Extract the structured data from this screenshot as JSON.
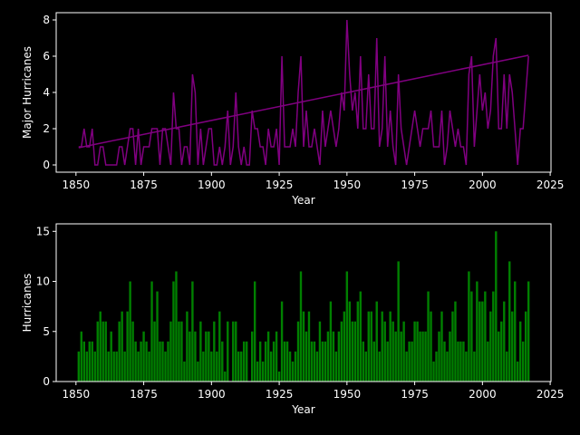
{
  "chart_data": [
    {
      "type": "line",
      "xlabel": "Year",
      "ylabel": "Major Hurricanes",
      "x": [
        1851,
        1852,
        1853,
        1854,
        1855,
        1856,
        1857,
        1858,
        1859,
        1860,
        1861,
        1862,
        1863,
        1864,
        1865,
        1866,
        1867,
        1868,
        1869,
        1870,
        1871,
        1872,
        1873,
        1874,
        1875,
        1876,
        1877,
        1878,
        1879,
        1880,
        1881,
        1882,
        1883,
        1884,
        1885,
        1886,
        1887,
        1888,
        1889,
        1890,
        1891,
        1892,
        1893,
        1894,
        1895,
        1896,
        1897,
        1898,
        1899,
        1900,
        1901,
        1902,
        1903,
        1904,
        1905,
        1906,
        1907,
        1908,
        1909,
        1910,
        1911,
        1912,
        1913,
        1914,
        1915,
        1916,
        1917,
        1918,
        1919,
        1920,
        1921,
        1922,
        1923,
        1924,
        1925,
        1926,
        1927,
        1928,
        1929,
        1930,
        1931,
        1932,
        1933,
        1934,
        1935,
        1936,
        1937,
        1938,
        1939,
        1940,
        1941,
        1942,
        1943,
        1944,
        1945,
        1946,
        1947,
        1948,
        1949,
        1950,
        1951,
        1952,
        1953,
        1954,
        1955,
        1956,
        1957,
        1958,
        1959,
        1960,
        1961,
        1962,
        1963,
        1964,
        1965,
        1966,
        1967,
        1968,
        1969,
        1970,
        1971,
        1972,
        1973,
        1974,
        1975,
        1976,
        1977,
        1978,
        1979,
        1980,
        1981,
        1982,
        1983,
        1984,
        1985,
        1986,
        1987,
        1988,
        1989,
        1990,
        1991,
        1992,
        1993,
        1994,
        1995,
        1996,
        1997,
        1998,
        1999,
        2000,
        2001,
        2002,
        2003,
        2004,
        2005,
        2006,
        2007,
        2008,
        2009,
        2010,
        2011,
        2012,
        2013,
        2014,
        2015,
        2016,
        2017
      ],
      "series": [
        {
          "color": "#800080",
          "values": [
            1,
            1,
            2,
            1,
            1,
            2,
            0,
            0,
            1,
            1,
            0,
            0,
            0,
            0,
            0,
            1,
            1,
            0,
            1,
            2,
            2,
            0,
            2,
            0,
            1,
            1,
            1,
            2,
            2,
            2,
            0,
            2,
            2,
            1,
            0,
            4,
            2,
            2,
            0,
            1,
            1,
            0,
            5,
            4,
            0,
            2,
            0,
            1,
            2,
            2,
            0,
            0,
            1,
            0,
            1,
            3,
            0,
            1,
            4,
            1,
            0,
            1,
            0,
            0,
            3,
            2,
            2,
            1,
            1,
            0,
            2,
            1,
            1,
            2,
            0,
            6,
            1,
            1,
            1,
            2,
            1,
            4,
            6,
            1,
            3,
            1,
            1,
            2,
            1,
            0,
            3,
            1,
            2,
            3,
            2,
            1,
            2,
            4,
            3,
            8,
            5,
            3,
            4,
            2,
            6,
            2,
            2,
            5,
            2,
            2,
            7,
            1,
            2,
            6,
            1,
            3,
            1,
            0,
            5,
            2,
            1,
            0,
            1,
            2,
            3,
            2,
            1,
            2,
            2,
            2,
            3,
            1,
            1,
            1,
            3,
            0,
            1,
            3,
            2,
            1,
            2,
            1,
            1,
            0,
            5,
            6,
            1,
            3,
            5,
            3,
            4,
            2,
            3,
            6,
            7,
            2,
            2,
            5,
            2,
            5,
            4,
            2,
            0,
            2,
            2,
            4,
            6
          ]
        }
      ],
      "trend": {
        "color": "#800080",
        "x": [
          1851,
          2017
        ],
        "values": [
          0.95,
          6.05
        ]
      },
      "xlim": [
        1842.7,
        2025.3
      ],
      "ylim": [
        -0.4,
        8.4
      ],
      "xticks": [
        1850,
        1875,
        1900,
        1925,
        1950,
        1975,
        2000,
        2025
      ],
      "yticks": [
        0,
        2,
        4,
        6,
        8
      ]
    },
    {
      "type": "bar",
      "xlabel": "Year",
      "ylabel": "Hurricanes",
      "color": "#008000",
      "x": [
        1851,
        1852,
        1853,
        1854,
        1855,
        1856,
        1857,
        1858,
        1859,
        1860,
        1861,
        1862,
        1863,
        1864,
        1865,
        1866,
        1867,
        1868,
        1869,
        1870,
        1871,
        1872,
        1873,
        1874,
        1875,
        1876,
        1877,
        1878,
        1879,
        1880,
        1881,
        1882,
        1883,
        1884,
        1885,
        1886,
        1887,
        1888,
        1889,
        1890,
        1891,
        1892,
        1893,
        1894,
        1895,
        1896,
        1897,
        1898,
        1899,
        1900,
        1901,
        1902,
        1903,
        1904,
        1905,
        1906,
        1907,
        1908,
        1909,
        1910,
        1911,
        1912,
        1913,
        1914,
        1915,
        1916,
        1917,
        1918,
        1919,
        1920,
        1921,
        1922,
        1923,
        1924,
        1925,
        1926,
        1927,
        1928,
        1929,
        1930,
        1931,
        1932,
        1933,
        1934,
        1935,
        1936,
        1937,
        1938,
        1939,
        1940,
        1941,
        1942,
        1943,
        1944,
        1945,
        1946,
        1947,
        1948,
        1949,
        1950,
        1951,
        1952,
        1953,
        1954,
        1955,
        1956,
        1957,
        1958,
        1959,
        1960,
        1961,
        1962,
        1963,
        1964,
        1965,
        1966,
        1967,
        1968,
        1969,
        1970,
        1971,
        1972,
        1973,
        1974,
        1975,
        1976,
        1977,
        1978,
        1979,
        1980,
        1981,
        1982,
        1983,
        1984,
        1985,
        1986,
        1987,
        1988,
        1989,
        1990,
        1991,
        1992,
        1993,
        1994,
        1995,
        1996,
        1997,
        1998,
        1999,
        2000,
        2001,
        2002,
        2003,
        2004,
        2005,
        2006,
        2007,
        2008,
        2009,
        2010,
        2011,
        2012,
        2013,
        2014,
        2015,
        2016,
        2017
      ],
      "values": [
        3,
        5,
        4,
        3,
        4,
        4,
        3,
        6,
        7,
        6,
        6,
        3,
        5,
        3,
        3,
        6,
        7,
        3,
        7,
        10,
        6,
        4,
        3,
        4,
        5,
        4,
        3,
        10,
        6,
        9,
        4,
        4,
        3,
        4,
        6,
        10,
        11,
        6,
        6,
        2,
        7,
        5,
        10,
        5,
        2,
        6,
        3,
        5,
        5,
        3,
        6,
        3,
        7,
        4,
        1,
        6,
        0,
        6,
        6,
        3,
        3,
        4,
        4,
        0,
        5,
        10,
        2,
        4,
        2,
        4,
        5,
        3,
        4,
        5,
        1,
        8,
        4,
        4,
        3,
        2,
        3,
        6,
        11,
        7,
        5,
        7,
        4,
        4,
        3,
        6,
        4,
        4,
        5,
        8,
        5,
        3,
        5,
        6,
        7,
        11,
        8,
        6,
        6,
        8,
        9,
        4,
        3,
        7,
        7,
        4,
        8,
        3,
        7,
        6,
        4,
        7,
        6,
        5,
        12,
        5,
        6,
        3,
        4,
        4,
        6,
        6,
        5,
        5,
        5,
        9,
        7,
        2,
        3,
        5,
        7,
        4,
        3,
        5,
        7,
        8,
        4,
        4,
        4,
        3,
        11,
        9,
        3,
        10,
        8,
        8,
        9,
        4,
        7,
        9,
        15,
        5,
        6,
        8,
        3,
        12,
        7,
        10,
        2,
        6,
        4,
        7,
        10
      ],
      "xlim": [
        1842.7,
        2025.3
      ],
      "ylim": [
        0,
        15.75
      ],
      "xticks": [
        1850,
        1875,
        1900,
        1925,
        1950,
        1975,
        2000,
        2025
      ],
      "yticks": [
        0,
        5,
        10,
        15
      ]
    }
  ]
}
